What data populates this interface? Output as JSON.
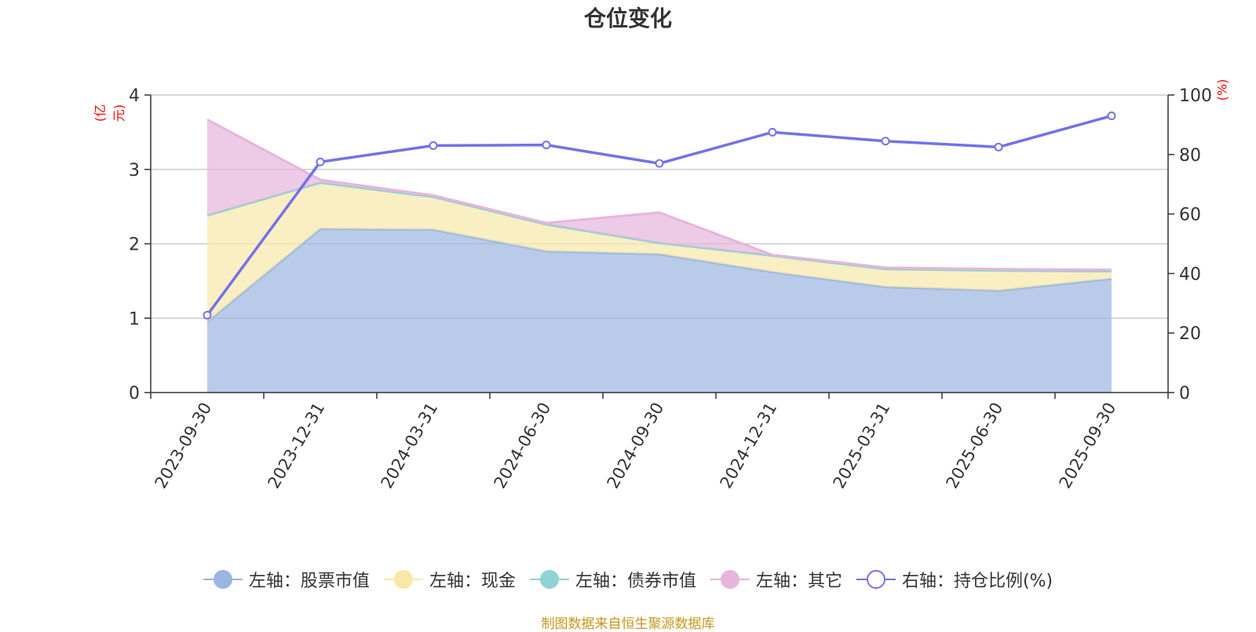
{
  "chart_data": {
    "type": "area",
    "title": "仓位变化",
    "left_axis_unit": "(亿元)",
    "right_axis_unit": "(%)",
    "categories": [
      "2023-09-30",
      "2023-12-31",
      "2024-03-31",
      "2024-06-30",
      "2024-09-30",
      "2024-12-31",
      "2025-03-31",
      "2025-06-30",
      "2025-09-30"
    ],
    "left_ylim": [
      0,
      4
    ],
    "left_ticks": [
      "0",
      "1",
      "2",
      "3",
      "4"
    ],
    "right_ylim": [
      0,
      100
    ],
    "right_ticks": [
      "0",
      "20",
      "40",
      "60",
      "80",
      "100"
    ],
    "series": [
      {
        "name": "左轴：股票市值",
        "axis": "left",
        "stack": true,
        "color": "#9ab5e0",
        "values": [
          0.95,
          2.2,
          2.19,
          1.9,
          1.86,
          1.62,
          1.42,
          1.37,
          1.53
        ]
      },
      {
        "name": "左轴：现金",
        "axis": "left",
        "stack": true,
        "color": "#f7e8a8",
        "values": [
          1.43,
          0.62,
          0.44,
          0.36,
          0.15,
          0.22,
          0.24,
          0.27,
          0.1
        ]
      },
      {
        "name": "左轴：债券市值",
        "axis": "left",
        "stack": true,
        "color": "#8fd3d4",
        "values": [
          0,
          0,
          0,
          0,
          0,
          0,
          0,
          0,
          0
        ]
      },
      {
        "name": "左轴：其它",
        "axis": "left",
        "stack": true,
        "color": "#e6b5db",
        "values": [
          1.29,
          0.04,
          0.02,
          0.02,
          0.41,
          0.01,
          0.02,
          0.02,
          0.02
        ]
      },
      {
        "name": "右轴：持仓比例(%)",
        "axis": "right",
        "stack": false,
        "color": "#7272ea",
        "values": [
          26,
          77.5,
          83,
          83.2,
          77,
          87.5,
          84.5,
          82.5,
          93
        ]
      }
    ]
  },
  "footer": {
    "source": "制图数据来自恒生聚源数据库"
  }
}
